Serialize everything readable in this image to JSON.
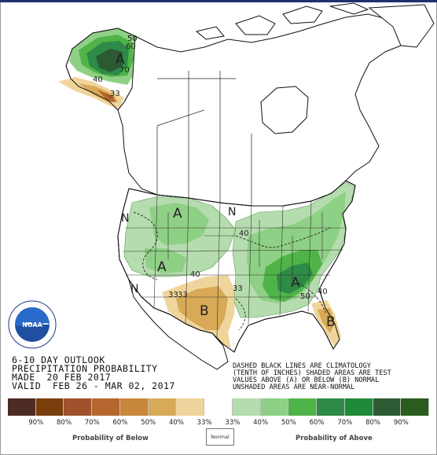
{
  "title_block": {
    "line1": "6-10 DAY OUTLOOK",
    "line2": "PRECIPITATION PROBABILITY",
    "line3": "MADE  20 FEB 2017",
    "line4": "VALID  FEB 26 - MAR 02, 2017"
  },
  "note": {
    "line1": "DASHED BLACK LINES ARE CLIMATOLOGY",
    "line2": "(TENTH OF INCHES) SHADED AREAS ARE TEST",
    "line3": "VALUES ABOVE (A) OR BELOW (B) NORMAL",
    "line4": "UNSHADED AREAS ARE NEAR-NORMAL"
  },
  "map_labels": {
    "alaska_above": "A",
    "west_above_1": "A",
    "west_above_2": "A",
    "southeast_above": "A",
    "texas_below": "B",
    "florida_below": "B",
    "north_normal_1": "N",
    "north_normal_2": "N",
    "west_normal": "N"
  },
  "contours": {
    "ak_50": "50",
    "ak_60": "60",
    "ak_70": "70",
    "ak_40": "40",
    "ak_33": "33",
    "w_40": "40",
    "c_40": "40",
    "sw_33": "33",
    "sw_33b": "33",
    "se_50": "50",
    "se_40": "40",
    "tx_33": "33"
  },
  "legend": {
    "colors": [
      "#4b2b22",
      "#7a3e0c",
      "#a0522d",
      "#b5662e",
      "#c8873a",
      "#d8a956",
      "#efd59b",
      "#ffffff",
      "#b5dcae",
      "#8ed085",
      "#4fb447",
      "#2e8a47",
      "#1f8b38",
      "#2b5a33",
      "#2a5c1f"
    ],
    "labels": [
      "90%",
      "80%",
      "70%",
      "60%",
      "50%",
      "40%",
      "33%",
      "33%",
      "40%",
      "50%",
      "60%",
      "70%",
      "80%",
      "90%"
    ],
    "below_caption": "Probability of Below",
    "normal_caption": "Normal",
    "above_caption": "Probability of Above"
  },
  "logo": {
    "name": "NOAA",
    "ring_text": "NATIONAL OCEANIC AND ATMOSPHERIC ADMINISTRATION · U.S. DEPARTMENT OF COMMERCE"
  }
}
